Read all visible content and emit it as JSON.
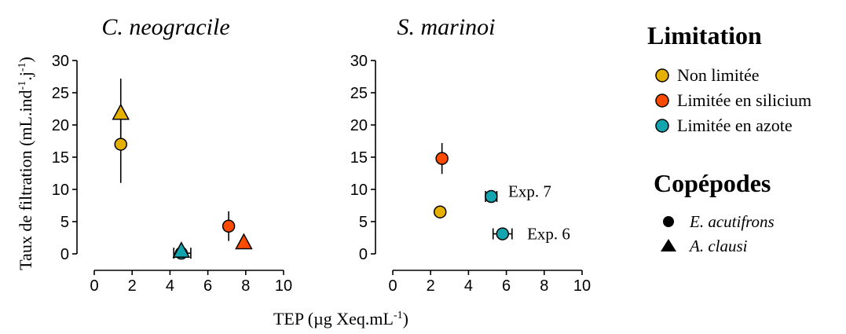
{
  "chart_data": {
    "type": "scatter",
    "panels": [
      {
        "title": "C. neogracile",
        "xlim": [
          0,
          10
        ],
        "ylim": [
          0,
          30
        ],
        "xticks": [
          0,
          2,
          4,
          6,
          8,
          10
        ],
        "yticks": [
          0,
          5,
          10,
          15,
          20,
          25,
          30
        ],
        "xtick_labels": [
          "0",
          "2",
          "4",
          "6",
          "8",
          "10"
        ],
        "ytick_labels": [
          "0",
          "5",
          "10",
          "15",
          "20",
          "25",
          "30"
        ],
        "points": [
          {
            "x": 1.4,
            "y": 17.0,
            "yerr": [
              11.0,
              23.0
            ],
            "limitation": "Non limitée",
            "copepode": "E. acutifrons"
          },
          {
            "x": 1.4,
            "y": 21.8,
            "yerr": [
              16.5,
              27.2
            ],
            "limitation": "Non limitée",
            "copepode": "A. clausi"
          },
          {
            "x": 4.6,
            "y": 0.1,
            "xerr": [
              4.2,
              5.1
            ],
            "limitation": "Limitée en azote",
            "copepode": "E. acutifrons"
          },
          {
            "x": 4.6,
            "y": 0.4,
            "limitation": "Limitée en azote",
            "copepode": "A. clausi"
          },
          {
            "x": 7.1,
            "y": 4.3,
            "yerr": [
              2.0,
              6.6
            ],
            "limitation": "Limitée en silicium",
            "copepode": "E. acutifrons"
          },
          {
            "x": 7.9,
            "y": 1.7,
            "limitation": "Limitée en silicium",
            "copepode": "A. clausi"
          }
        ],
        "annotations": []
      },
      {
        "title": "S. marinoi",
        "xlim": [
          0,
          10
        ],
        "ylim": [
          0,
          30
        ],
        "xticks": [
          0,
          2,
          4,
          6,
          8,
          10
        ],
        "yticks": [
          0,
          5,
          10,
          15,
          20,
          25,
          30
        ],
        "xtick_labels": [
          "0",
          "2",
          "4",
          "6",
          "8",
          "10"
        ],
        "ytick_labels": [
          "0",
          "5",
          "10",
          "15",
          "20",
          "25",
          "30"
        ],
        "points": [
          {
            "x": 2.5,
            "y": 6.5,
            "yerr": [
              5.7,
              7.2
            ],
            "limitation": "Non limitée",
            "copepode": "E. acutifrons"
          },
          {
            "x": 2.6,
            "y": 14.8,
            "yerr": [
              12.4,
              17.2
            ],
            "limitation": "Limitée en silicium",
            "copepode": "E. acutifrons"
          },
          {
            "x": 5.2,
            "y": 8.9,
            "xerr": [
              4.9,
              5.5
            ],
            "yerr": [
              8.1,
              9.7
            ],
            "limitation": "Limitée en azote",
            "copepode": "E. acutifrons"
          },
          {
            "x": 5.8,
            "y": 3.1,
            "xerr": [
              5.3,
              6.3
            ],
            "limitation": "Limitée en azote",
            "copepode": "E. acutifrons"
          }
        ],
        "annotations": [
          {
            "text": "Exp. 7",
            "x": 6.1,
            "y": 9.7
          },
          {
            "text": "Exp. 6",
            "x": 7.1,
            "y": 3.1
          }
        ]
      }
    ],
    "ylabel": "Taux de filtration (mL.ind",
    "ylabel_sup1": "-1",
    "ylabel_mid": ".j",
    "ylabel_sup2": "-1",
    "ylabel_end": ")",
    "xlabel": "TEP (µg Xeq.mL",
    "xlabel_sup": "-1",
    "xlabel_end": ")",
    "legend": {
      "placement": "right",
      "limitation_title": "Limitation",
      "limitation_items": [
        {
          "label": "Non limitée",
          "color": "#E5B000"
        },
        {
          "label": "Limitée en silicium",
          "color": "#FF4B00"
        },
        {
          "label": "Limitée en azote",
          "color": "#12A5B0"
        }
      ],
      "copepode_title": "Copépodes",
      "copepode_items": [
        {
          "label": "E. acutifrons",
          "shape": "circle"
        },
        {
          "label": "A. clausi",
          "shape": "triangle"
        }
      ]
    }
  }
}
